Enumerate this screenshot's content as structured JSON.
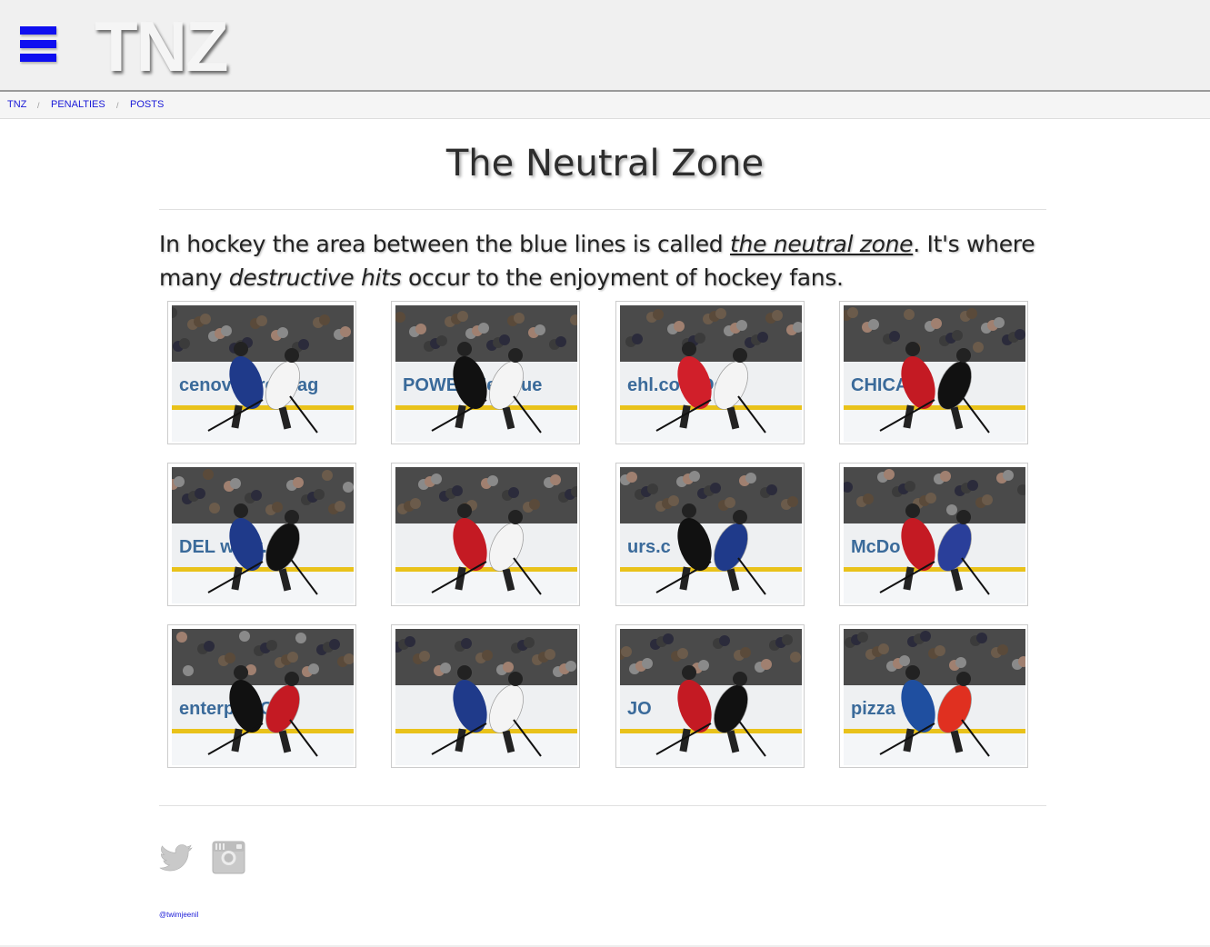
{
  "header": {
    "logo": "TNZ",
    "menu_icon": "hamburger-menu-icon",
    "accent_color": "#0f0ff0"
  },
  "breadcrumb": [
    {
      "label": "TNZ"
    },
    {
      "label": "PENALTIES"
    },
    {
      "label": "POSTS"
    }
  ],
  "breadcrumb_separator": "/",
  "main": {
    "title": "The Neutral Zone",
    "intro_text_1": "In hockey the area between the blue lines is called ",
    "intro_link": "the neutral zone",
    "intro_text_2": ". It's where many ",
    "intro_em": "destructive hits",
    "intro_text_3": " occur to the enjoyment of hockey fans."
  },
  "gallery": {
    "photos": [
      {
        "jersey_a": "#1f3a8a",
        "jersey_b": "#f4f4f4",
        "ad": "cenovus  red tag"
      },
      {
        "jersey_a": "#111111",
        "jersey_b": "#f4f4f4",
        "ad": "POWER  JetBlue"
      },
      {
        "jersey_a": "#d11f2a",
        "jersey_b": "#f4f4f4",
        "ad": "ehl.com  Detr"
      },
      {
        "jersey_a": "#c41a23",
        "jersey_b": "#111111",
        "ad": "CHICAG"
      },
      {
        "jersey_a": "#1f3a8a",
        "jersey_b": "#111111",
        "ad": "DEL  www.del"
      },
      {
        "jersey_a": "#c41a23",
        "jersey_b": "#f4f4f4",
        "ad": ""
      },
      {
        "jersey_a": "#111111",
        "jersey_b": "#1f3a8a",
        "ad": "urs.c"
      },
      {
        "jersey_a": "#c41a23",
        "jersey_b": "#2a3f9a",
        "ad": "McDo"
      },
      {
        "jersey_a": "#111111",
        "jersey_b": "#c41a23",
        "ad": "enterpr  ROSS"
      },
      {
        "jersey_a": "#1f3a8a",
        "jersey_b": "#f4f4f4",
        "ad": ""
      },
      {
        "jersey_a": "#c41a23",
        "jersey_b": "#111111",
        "ad": "JO"
      },
      {
        "jersey_a": "#1f4fa0",
        "jersey_b": "#e03020",
        "ad": "pizza"
      }
    ]
  },
  "footer": {
    "twitter_icon": "twitter-bird-icon",
    "instagram_icon": "instagram-camera-icon",
    "handle": "@twimjeenil"
  }
}
